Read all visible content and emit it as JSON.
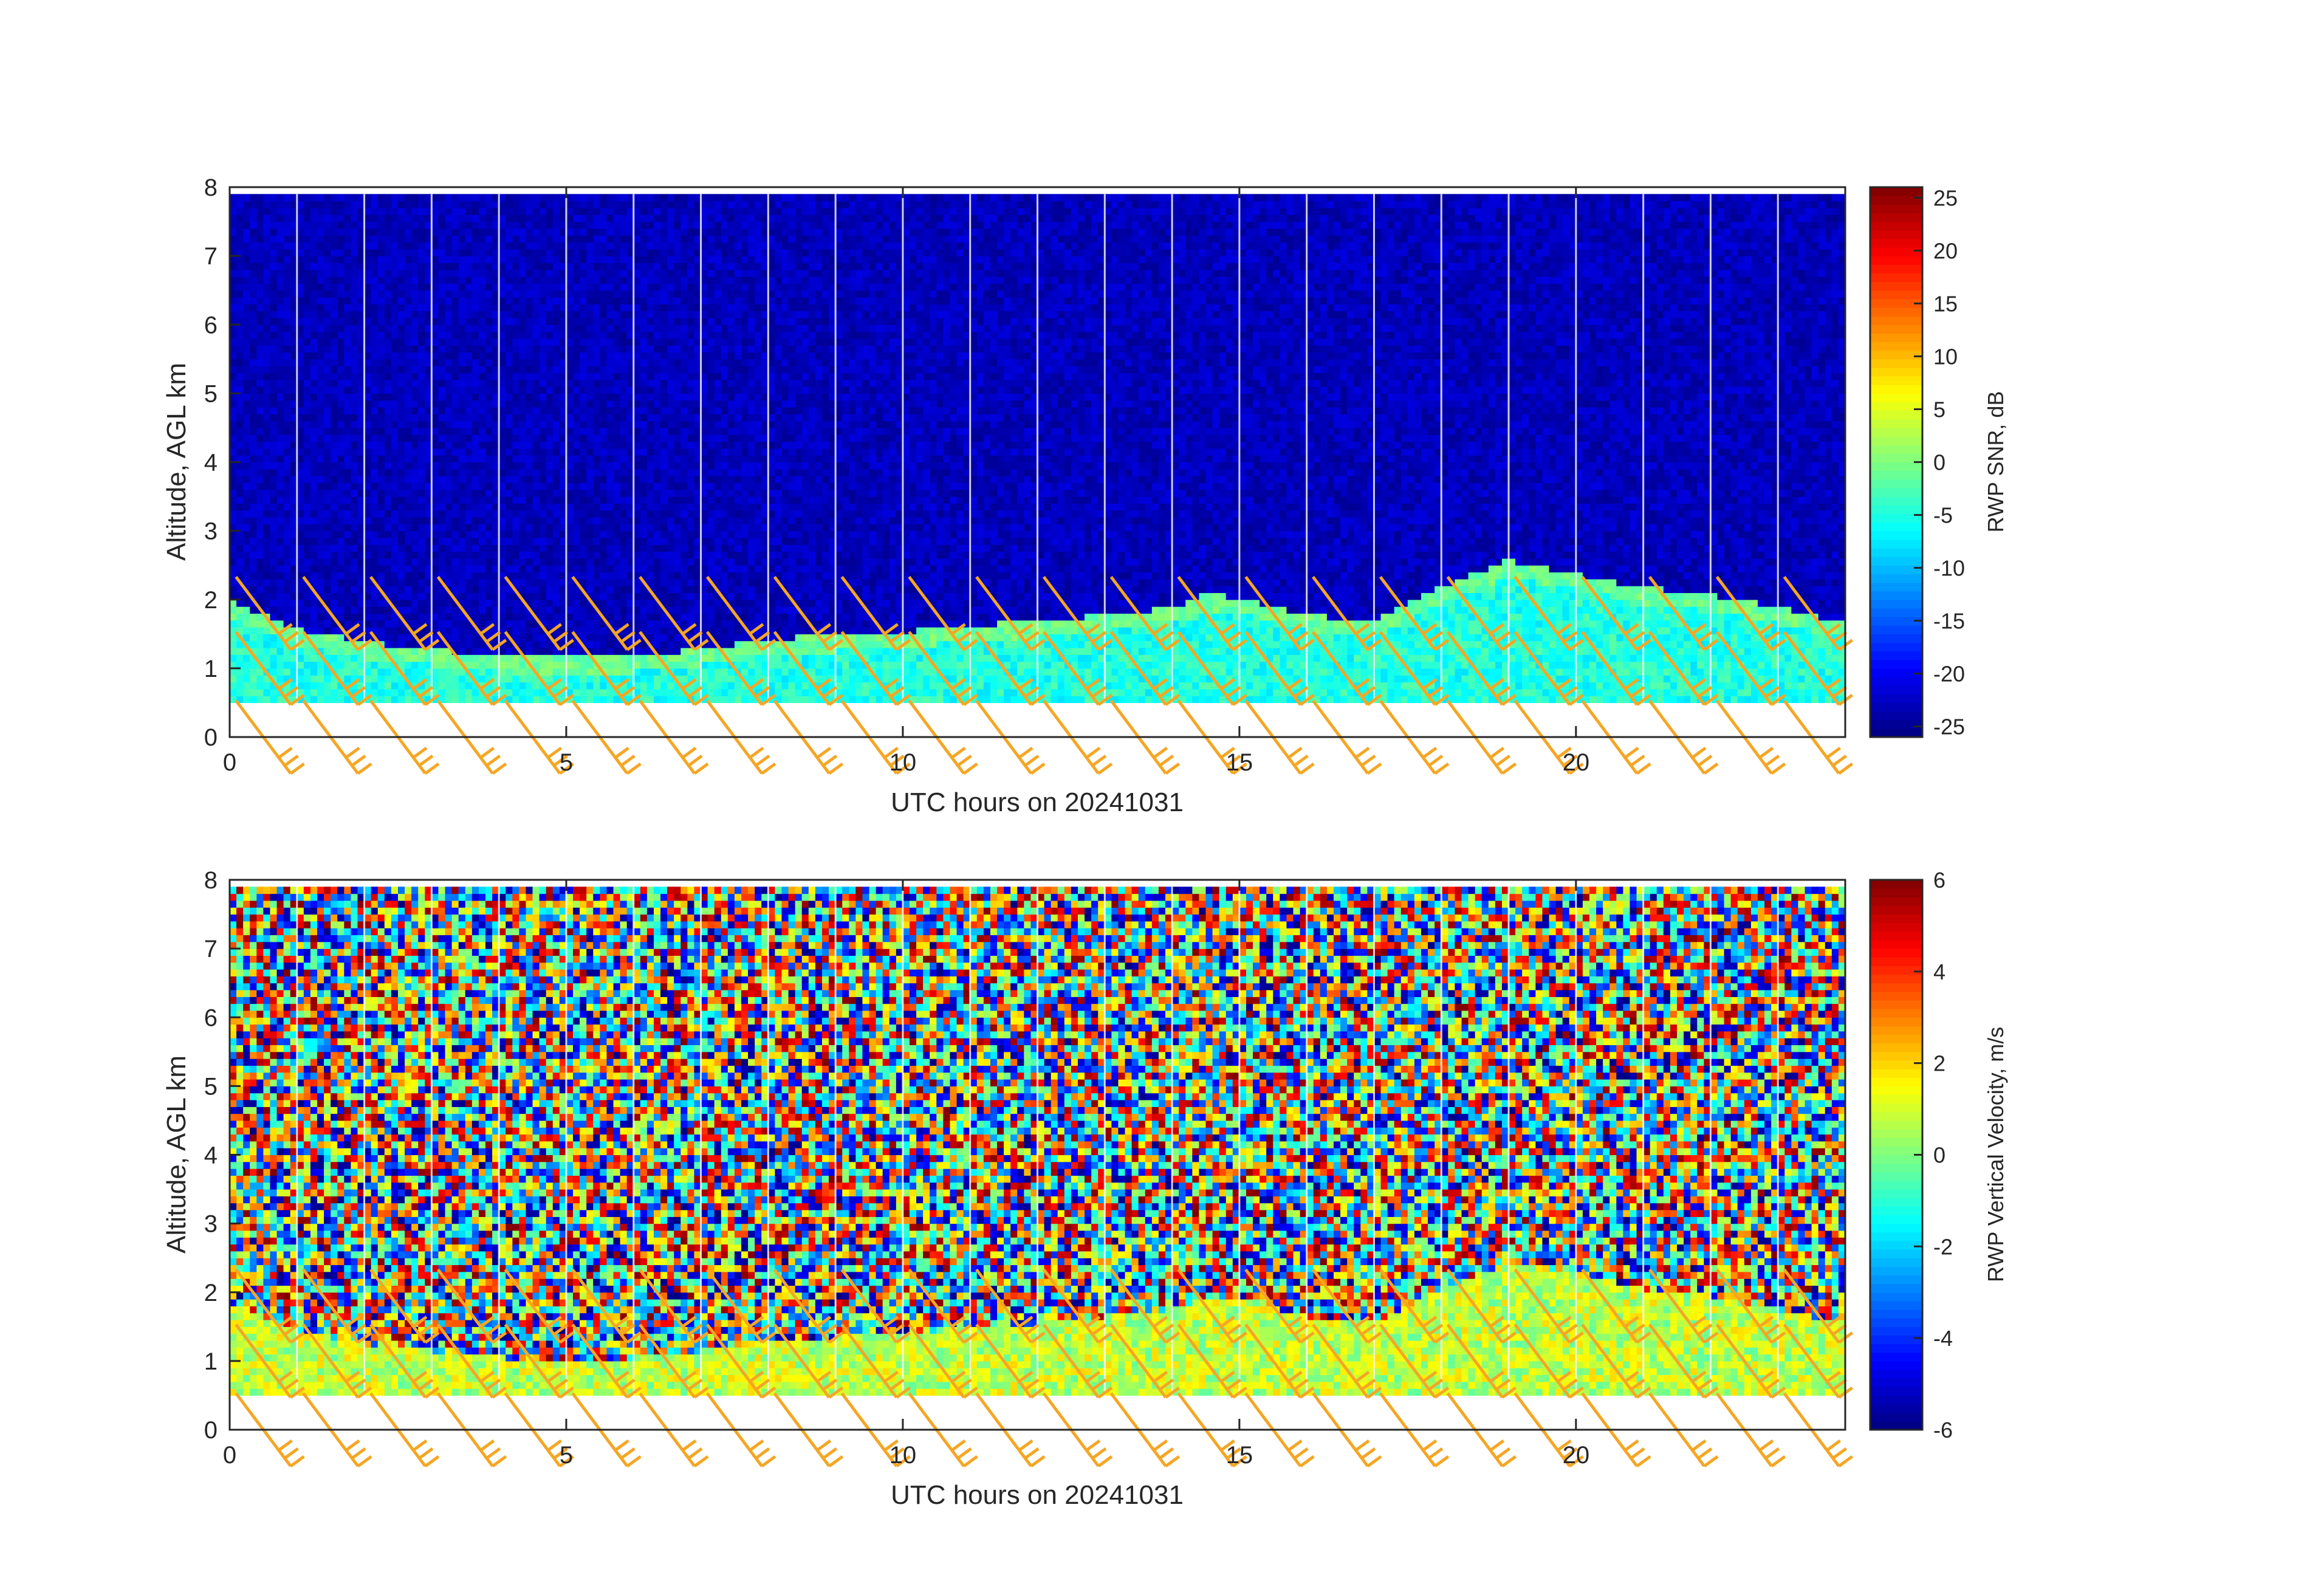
{
  "chart_data": [
    {
      "type": "heatmap",
      "panel": "top",
      "xlabel": "UTC hours on 20241031",
      "ylabel": "Altitude, AGL km",
      "xlim": [
        0,
        24
      ],
      "ylim": [
        0,
        8
      ],
      "xticks": [
        0,
        5,
        10,
        15,
        20
      ],
      "yticks": [
        0,
        1,
        2,
        3,
        4,
        5,
        6,
        7,
        8
      ],
      "colorbar": {
        "label": "RWP SNR, dB",
        "colormap": "jet",
        "range": [
          -26,
          26
        ],
        "ticks": [
          25,
          20,
          15,
          10,
          5,
          0,
          -5,
          -10,
          -15,
          -20,
          -25
        ]
      },
      "data_range_km": [
        0.5,
        7.9
      ],
      "background_value": -22,
      "boundary_layer_top_km": [
        {
          "x": 0,
          "y": 1.9
        },
        {
          "x": 1,
          "y": 1.5
        },
        {
          "x": 2,
          "y": 1.3
        },
        {
          "x": 3,
          "y": 1.2
        },
        {
          "x": 4,
          "y": 1.1
        },
        {
          "x": 5,
          "y": 1.1
        },
        {
          "x": 6,
          "y": 1.1
        },
        {
          "x": 7,
          "y": 1.2
        },
        {
          "x": 8,
          "y": 1.35
        },
        {
          "x": 9,
          "y": 1.4
        },
        {
          "x": 10,
          "y": 1.45
        },
        {
          "x": 11,
          "y": 1.55
        },
        {
          "x": 12,
          "y": 1.6
        },
        {
          "x": 13,
          "y": 1.7
        },
        {
          "x": 14,
          "y": 1.8
        },
        {
          "x": 14.5,
          "y": 2.0
        },
        {
          "x": 15,
          "y": 1.95
        },
        {
          "x": 16,
          "y": 1.7
        },
        {
          "x": 17,
          "y": 1.6
        },
        {
          "x": 18,
          "y": 2.1
        },
        {
          "x": 19,
          "y": 2.5
        },
        {
          "x": 20,
          "y": 2.3
        },
        {
          "x": 21,
          "y": 2.1
        },
        {
          "x": 22,
          "y": 2.0
        },
        {
          "x": 23,
          "y": 1.8
        },
        {
          "x": 24,
          "y": 1.6
        }
      ],
      "wind_barbs": {
        "color": "#f5a623",
        "times_h": [
          0.5,
          1.5,
          2.5,
          3.5,
          4.5,
          5.5,
          6.5,
          7.5,
          8.5,
          9.5,
          10.5,
          11.5,
          12.5,
          13.5,
          14.5,
          15.5,
          16.5,
          17.5,
          18.5,
          19.5,
          20.5,
          21.5,
          22.5,
          23.5
        ],
        "heights_km": [
          0,
          1.0,
          1.8
        ]
      }
    },
    {
      "type": "heatmap",
      "panel": "bottom",
      "xlabel": "UTC hours on 20241031",
      "ylabel": "Altitude, AGL km",
      "xlim": [
        0,
        24
      ],
      "ylim": [
        0,
        8
      ],
      "xticks": [
        0,
        5,
        10,
        15,
        20
      ],
      "yticks": [
        0,
        1,
        2,
        3,
        4,
        5,
        6,
        7,
        8
      ],
      "colorbar": {
        "label": "RWP Vertical Velocity, m/s",
        "colormap": "jet",
        "range": [
          -6,
          6
        ],
        "ticks": [
          6,
          4,
          2,
          0,
          -2,
          -4,
          -6
        ]
      },
      "data_range_km": [
        0.5,
        7.9
      ],
      "background_value": "noise",
      "boundary_layer_value": 0.8,
      "wind_barbs": {
        "color": "#f5a623",
        "times_h": [
          0.5,
          1.5,
          2.5,
          3.5,
          4.5,
          5.5,
          6.5,
          7.5,
          8.5,
          9.5,
          10.5,
          11.5,
          12.5,
          13.5,
          14.5,
          15.5,
          16.5,
          17.5,
          18.5,
          19.5,
          20.5,
          21.5,
          22.5,
          23.5
        ],
        "heights_km": [
          0,
          1.0,
          1.8
        ]
      }
    }
  ]
}
